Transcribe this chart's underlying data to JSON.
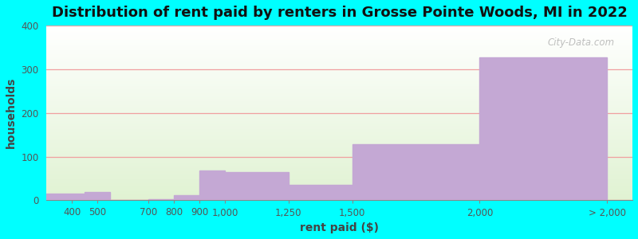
{
  "title": "Distribution of rent paid by renters in Grosse Pointe Woods, MI in 2022",
  "xlabel": "rent paid ($)",
  "ylabel": "households",
  "bar_edges": [
    300,
    450,
    550,
    700,
    800,
    900,
    1000,
    1250,
    1500,
    2000,
    2500
  ],
  "values": [
    15,
    20,
    0,
    2,
    12,
    68,
    65,
    35,
    128,
    328
  ],
  "tick_positions": [
    400,
    500,
    700,
    800,
    900,
    1000,
    1250,
    1500,
    2000,
    2500
  ],
  "tick_labels": [
    "400",
    "500",
    "700",
    "800",
    "900",
    "1,000",
    "1,250",
    "1,500",
    "2,000",
    "> 2,000"
  ],
  "bar_color": "#C4A8D4",
  "ylim": [
    0,
    400
  ],
  "xlim": [
    300,
    2600
  ],
  "yticks": [
    0,
    100,
    200,
    300,
    400
  ],
  "figure_bg": "#00ffff",
  "title_fontsize": 13,
  "axis_label_fontsize": 10,
  "tick_fontsize": 8.5,
  "grid_color": "#f0a0a0",
  "watermark": "City-Data.com"
}
